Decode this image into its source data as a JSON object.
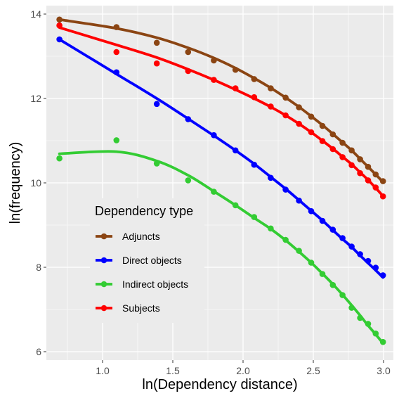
{
  "chart_data": {
    "type": "scatter",
    "xlabel": "ln(Dependency distance)",
    "ylabel": "ln(frequency)",
    "xlim": [
      0.6,
      3.07
    ],
    "ylim": [
      5.8,
      14.2
    ],
    "x_ticks": [
      "1.0",
      "1.5",
      "2.0",
      "2.5",
      "3.0"
    ],
    "y_ticks": [
      "6",
      "8",
      "10",
      "12",
      "14"
    ],
    "grid": true,
    "legend": {
      "title": "Dependency type",
      "position": "inside-bottom-left"
    },
    "x": [
      0.693,
      1.099,
      1.386,
      1.609,
      1.792,
      1.946,
      2.079,
      2.197,
      2.303,
      2.398,
      2.485,
      2.565,
      2.639,
      2.708,
      2.773,
      2.833,
      2.89,
      2.944,
      2.996
    ],
    "series": [
      {
        "name": "Adjuncts",
        "color": "#8B4513",
        "values": [
          13.87,
          13.69,
          13.32,
          13.1,
          12.9,
          12.68,
          12.46,
          12.24,
          12.02,
          11.79,
          11.57,
          11.35,
          11.15,
          10.95,
          10.77,
          10.56,
          10.38,
          10.2,
          10.04
        ],
        "fit": [
          13.87,
          13.66,
          13.44,
          13.2,
          12.96,
          12.72,
          12.48,
          12.25,
          12.02,
          11.8,
          11.58,
          11.37,
          11.16,
          10.96,
          10.77,
          10.57,
          10.38,
          10.2,
          10.02
        ]
      },
      {
        "name": "Direct objects",
        "color": "#0000FF",
        "values": [
          13.4,
          12.62,
          11.87,
          11.51,
          11.13,
          10.77,
          10.43,
          10.12,
          9.84,
          9.58,
          9.33,
          9.1,
          8.89,
          8.69,
          8.49,
          8.31,
          8.15,
          7.99,
          7.81
        ],
        "fit": [
          13.4,
          12.58,
          12.0,
          11.52,
          11.12,
          10.77,
          10.45,
          10.14,
          9.86,
          9.59,
          9.34,
          9.11,
          8.88,
          8.67,
          8.48,
          8.28,
          8.1,
          7.93,
          7.76
        ]
      },
      {
        "name": "Indirect objects",
        "color": "#33CC33",
        "values": [
          10.58,
          11.01,
          10.46,
          10.06,
          9.79,
          9.47,
          9.19,
          8.92,
          8.65,
          8.39,
          8.11,
          7.84,
          7.58,
          7.34,
          7.04,
          6.8,
          6.66,
          6.43,
          6.23
        ],
        "fit": [
          10.69,
          10.74,
          10.52,
          10.18,
          9.8,
          9.47,
          9.17,
          8.91,
          8.64,
          8.37,
          8.11,
          7.85,
          7.6,
          7.35,
          7.1,
          6.86,
          6.62,
          6.41,
          6.2
        ]
      },
      {
        "name": "Subjects",
        "color": "#FF0000",
        "values": [
          13.73,
          13.1,
          12.83,
          12.65,
          12.44,
          12.24,
          12.03,
          11.81,
          11.6,
          11.4,
          11.2,
          10.99,
          10.8,
          10.61,
          10.42,
          10.23,
          10.06,
          9.89,
          9.68
        ],
        "fit": [
          13.68,
          13.27,
          12.97,
          12.69,
          12.44,
          12.21,
          12.0,
          11.8,
          11.6,
          11.4,
          11.2,
          11.0,
          10.81,
          10.62,
          10.44,
          10.25,
          10.07,
          9.88,
          9.69
        ]
      }
    ]
  }
}
